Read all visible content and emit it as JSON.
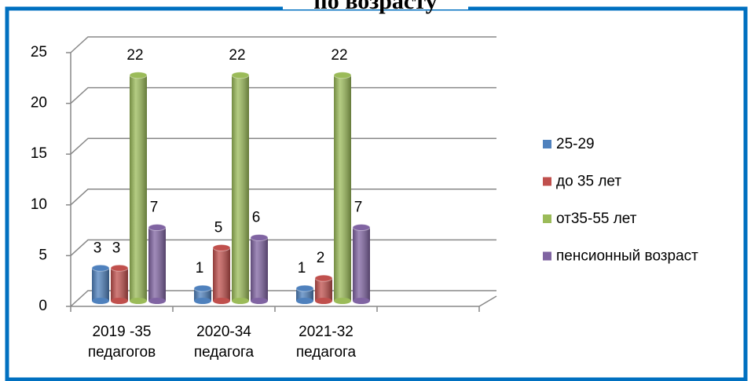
{
  "chart_data": {
    "type": "bar3d",
    "title": "по возрасту",
    "categories": [
      "2019 -35\nпедагогов",
      "2020-34\nпедагога",
      "2021-32\nпедагога"
    ],
    "series": [
      {
        "name": "25-29",
        "color": "#4f81bd",
        "values": [
          3,
          1,
          1
        ]
      },
      {
        "name": "до 35 лет",
        "color": "#c0504d",
        "values": [
          3,
          5,
          2
        ]
      },
      {
        "name": "от35-55 лет",
        "color": "#9bbb59",
        "values": [
          22,
          22,
          22
        ]
      },
      {
        "name": "пенсионный возраст",
        "color": "#8064a2",
        "values": [
          7,
          6,
          7
        ]
      }
    ],
    "ylim": [
      0,
      25
    ],
    "yticks": [
      0,
      5,
      10,
      15,
      20,
      25
    ],
    "grid": true,
    "legend": "right"
  }
}
